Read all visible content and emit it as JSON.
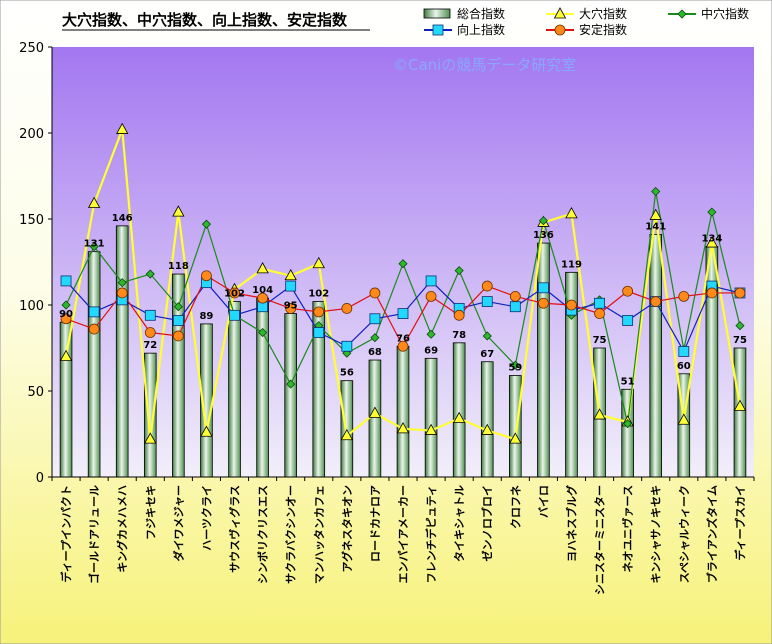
{
  "chart_data": {
    "type": "bar",
    "title": "大穴指数、中穴指数、向上指数、安定指数",
    "watermark": "©Caniの競馬データ研究室",
    "ylim": [
      0,
      250
    ],
    "yticks": [
      0,
      50,
      100,
      150,
      200,
      250
    ],
    "categories": [
      "ディープインパクト",
      "ゴールドアリュール",
      "キングカメハメハ",
      "フジキセキ",
      "ダイワメジャー",
      "ハーツクライ",
      "サウスヴィグラス",
      "シンボリクリスエス",
      "サクラバクシンオー",
      "マンハッタンカフェ",
      "アグネスタキオン",
      "ロードカナロア",
      "エンパイアメーカー",
      "フレンチデピュティ",
      "タイキシャトル",
      "ゼンノロブロイ",
      "クロフネ",
      "バイロ",
      "ヨハネスブルグ",
      "シニスターミニスター",
      "ネオユニヴァース",
      "キンシャサノキセキ",
      "スペシャルウィーク",
      "ブライアンズタイム",
      "ディープスカイ"
    ],
    "series": [
      {
        "name": "総合指数",
        "type": "bar",
        "color": "#5a9a5a",
        "labels": true,
        "values": [
          90,
          131,
          146,
          72,
          118,
          89,
          102,
          104,
          95,
          102,
          56,
          68,
          76,
          69,
          78,
          67,
          59,
          136,
          119,
          75,
          51,
          141,
          60,
          134,
          75
        ]
      },
      {
        "name": "大穴指数",
        "type": "line",
        "color": "#ffff33",
        "marker": "triangle",
        "values": [
          70,
          159,
          202,
          22,
          154,
          26,
          109,
          121,
          117,
          124,
          24,
          37,
          28,
          27,
          34,
          27,
          22,
          148,
          153,
          36,
          32,
          152,
          33,
          136,
          41
        ]
      },
      {
        "name": "中穴指数",
        "type": "line",
        "color": "#1a8a1a",
        "marker": "diamond",
        "values": [
          100,
          134,
          113,
          118,
          99,
          147,
          94,
          84,
          54,
          88,
          72,
          81,
          124,
          83,
          120,
          82,
          65,
          149,
          94,
          103,
          31,
          166,
          74,
          154,
          88
        ]
      },
      {
        "name": "向上指数",
        "type": "line",
        "color": "#1020c0",
        "marker": "square",
        "values": [
          114,
          96,
          103,
          94,
          91,
          113,
          94,
          99,
          111,
          84,
          76,
          92,
          95,
          114,
          98,
          102,
          99,
          110,
          97,
          101,
          91,
          102,
          73,
          111,
          107
        ]
      },
      {
        "name": "安定指数",
        "type": "line",
        "color": "#e01010",
        "marker": "circle",
        "values": [
          92,
          86,
          107,
          84,
          82,
          117,
          107,
          104,
          98,
          96,
          98,
          107,
          76,
          105,
          94,
          111,
          105,
          101,
          100,
          95,
          108,
          102,
          105,
          107,
          107
        ]
      }
    ],
    "legend": "top-right",
    "grid": false
  }
}
